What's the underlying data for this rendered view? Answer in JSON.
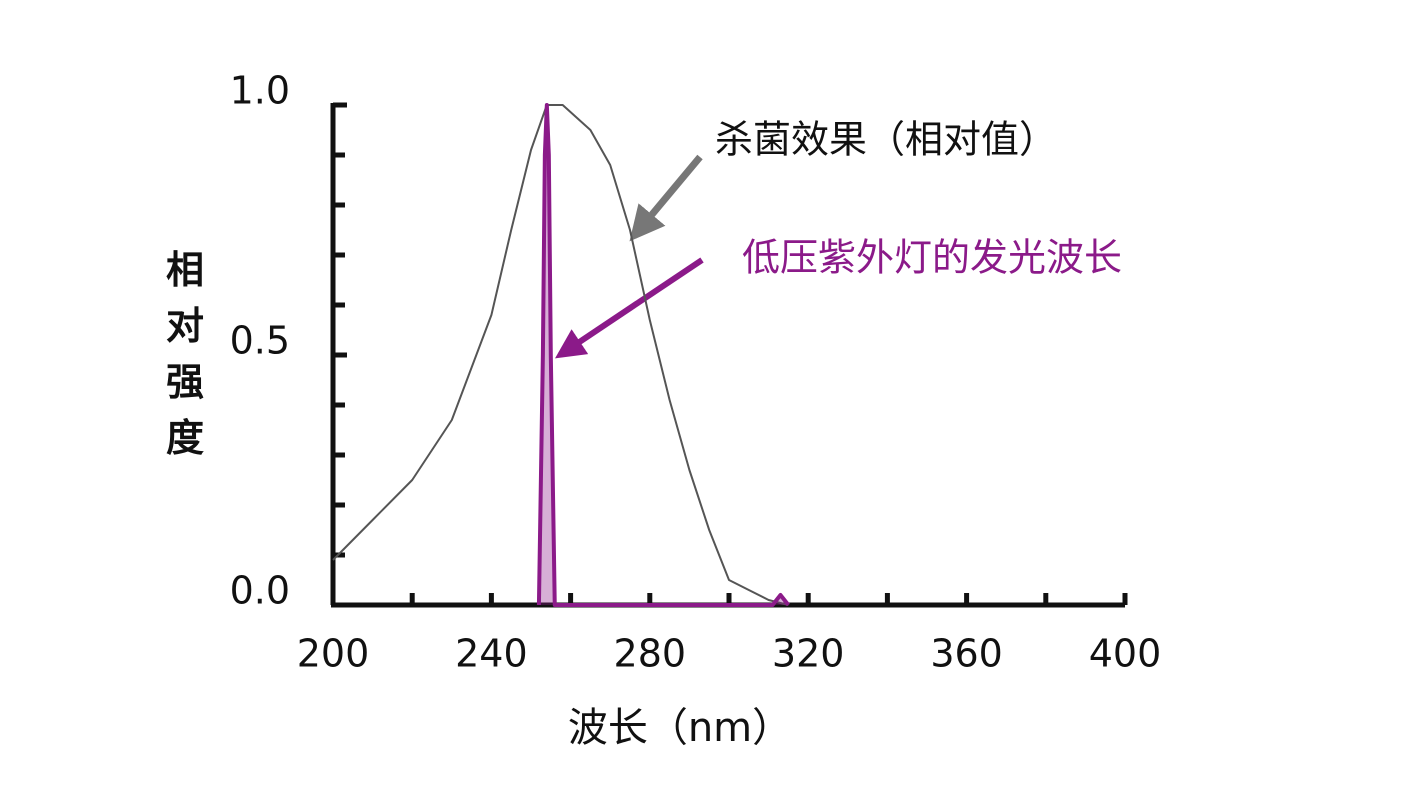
{
  "chart_data": {
    "type": "line",
    "xlabel": "波长（nm）",
    "ylabel": "相对强度",
    "xlim": [
      200,
      400
    ],
    "ylim": [
      0,
      1
    ],
    "xticks": [
      200,
      240,
      280,
      320,
      360,
      400
    ],
    "yticks": [
      {
        "value": 0,
        "label": "0.0"
      },
      {
        "value": 0.5,
        "label": "0.5"
      },
      {
        "value": 1,
        "label": "1.0"
      }
    ],
    "series": [
      {
        "name": "杀菌效果（相对值）",
        "color": "#555555",
        "x": [
          200,
          210,
          220,
          230,
          240,
          245,
          250,
          254,
          258,
          265,
          270,
          275,
          280,
          285,
          290,
          295,
          300,
          305,
          310,
          315
        ],
        "values": [
          0.09,
          0.17,
          0.25,
          0.37,
          0.58,
          0.75,
          0.91,
          1.0,
          1.0,
          0.95,
          0.88,
          0.75,
          0.57,
          0.41,
          0.27,
          0.15,
          0.05,
          0.03,
          0.01,
          0
        ]
      },
      {
        "name": "低压紫外灯的发光波长",
        "color": "#8b1a89",
        "x": [
          252,
          253,
          253.5,
          254,
          254.5,
          255,
          256,
          311,
          313,
          315
        ],
        "values": [
          0,
          0.5,
          0.9,
          1.0,
          0.9,
          0.5,
          0,
          0,
          0.02,
          0
        ]
      }
    ]
  }
}
